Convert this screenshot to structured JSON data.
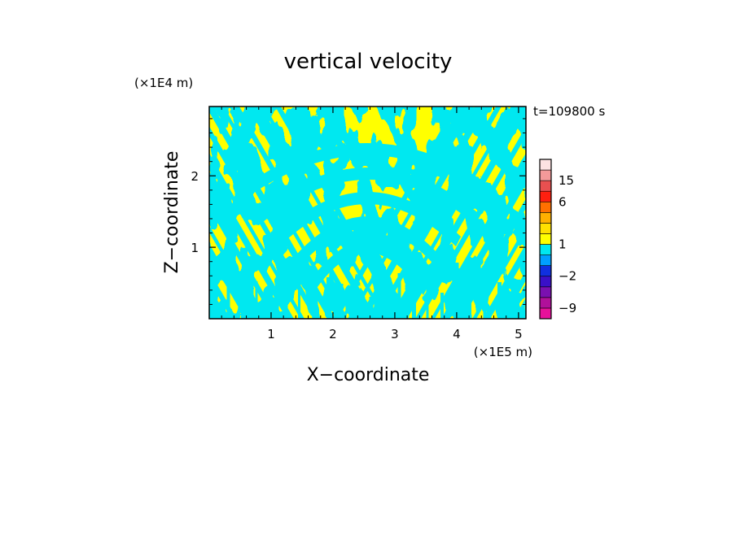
{
  "chart_data": {
    "type": "heatmap",
    "title": "vertical velocity",
    "xlabel": "X−coordinate",
    "ylabel": "Z−coordinate",
    "x_scale_label": "(×1E5 m)",
    "y_scale_label": "(×1E4 m)",
    "time_label": "t=109800 s",
    "xlim": [
      0,
      5.12
    ],
    "ylim": [
      0,
      2.97
    ],
    "x_ticks": [
      1,
      2,
      3,
      4,
      5
    ],
    "x_tick_labels": [
      "1",
      "2",
      "3",
      "4",
      "5"
    ],
    "y_ticks": [
      1,
      2
    ],
    "y_tick_labels": [
      "1",
      "2"
    ],
    "grid": false,
    "colorbar": {
      "levels": [
        -12,
        -9,
        -6,
        -3,
        -2,
        -1,
        0,
        1,
        2,
        3,
        4,
        6,
        10,
        15,
        20,
        28
      ],
      "colors": [
        "#e6109a",
        "#b0109a",
        "#7a10b0",
        "#3a10c8",
        "#1030e0",
        "#00a0ff",
        "#00e8f0",
        "#ffff00",
        "#ffe000",
        "#ffb000",
        "#ff7000",
        "#ff2010",
        "#e85050",
        "#f49a9a",
        "#fde2e2"
      ],
      "labeled_values": [
        15,
        6,
        1,
        -2,
        -9
      ],
      "labels": [
        "15",
        "6",
        "1",
        "−2",
        "−9"
      ]
    },
    "field_colors": {
      "positive": "#ffff00",
      "negative": "#00e8f0"
    },
    "field_description_colors": [
      "#ffff00",
      "#00e8f0"
    ]
  }
}
